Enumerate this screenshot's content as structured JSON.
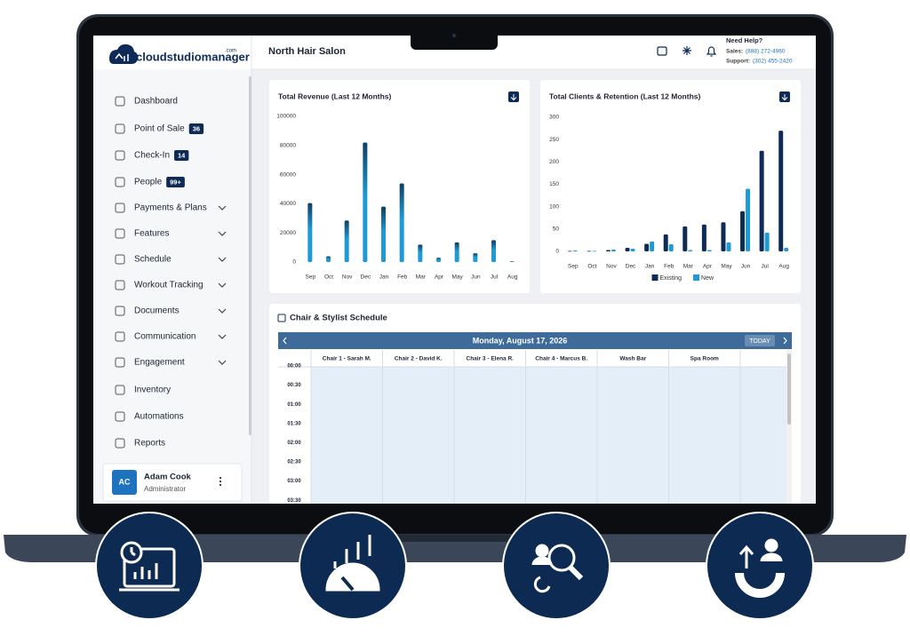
{
  "logo": {
    "name": "cloudstudiomanager",
    "suffix": ".com"
  },
  "header": {
    "title": "North Hair Salon",
    "help_title": "Need Help?",
    "sales_label": "Sales:",
    "sales_phone": "(888) 272-4960",
    "support_label": "Support:",
    "support_phone": "(302) 455-2420"
  },
  "sidebar": {
    "items": [
      {
        "label": "Dashboard"
      },
      {
        "label": "Point of Sale",
        "badge": "36"
      },
      {
        "label": "Check-In",
        "badge": "14"
      },
      {
        "label": "People",
        "badge": "99+"
      },
      {
        "label": "Payments & Plans",
        "expandable": true
      },
      {
        "label": "Features",
        "expandable": true
      },
      {
        "label": "Schedule",
        "expandable": true
      },
      {
        "label": "Workout Tracking",
        "expandable": true
      },
      {
        "label": "Documents",
        "expandable": true
      },
      {
        "label": "Communication",
        "expandable": true
      },
      {
        "label": "Engagement",
        "expandable": true
      },
      {
        "label": "Inventory"
      },
      {
        "label": "Automations"
      },
      {
        "label": "Reports"
      }
    ],
    "user": {
      "initials": "AC",
      "name": "Adam Cook",
      "role": "Administrator"
    }
  },
  "chart_data": [
    {
      "type": "bar",
      "title": "Total Revenue (Last 12 Months)",
      "categories": [
        "Sep",
        "Oct",
        "Nov",
        "Dec",
        "Jan",
        "Feb",
        "Mar",
        "Apr",
        "May",
        "Jun",
        "Jul",
        "Aug"
      ],
      "values": [
        40500,
        4000,
        28500,
        82000,
        38000,
        54000,
        12000,
        3000,
        13500,
        6000,
        15000,
        500
      ],
      "color": "#1e9ad6",
      "ylim": [
        0,
        100000
      ],
      "yticks": [
        0,
        20000,
        40000,
        60000,
        80000,
        100000
      ]
    },
    {
      "type": "bar",
      "title": "Total Clients & Retention (Last 12 Months)",
      "categories": [
        "Sep",
        "Oct",
        "Nov",
        "Dec",
        "Jan",
        "Feb",
        "Mar",
        "Apr",
        "May",
        "Jun",
        "Jul",
        "Aug"
      ],
      "series": [
        {
          "name": "Existing",
          "color": "#0d2b56",
          "values": [
            1,
            1,
            3,
            8,
            17,
            38,
            56,
            60,
            65,
            90,
            225,
            270
          ]
        },
        {
          "name": "New",
          "color": "#1e9ad6",
          "values": [
            2,
            1,
            4,
            6,
            22,
            16,
            3,
            3,
            20,
            140,
            42,
            8
          ]
        }
      ],
      "ylim": [
        0,
        300
      ],
      "yticks": [
        0,
        50,
        100,
        150,
        200,
        250,
        300
      ],
      "legend": "bottom"
    }
  ],
  "schedule": {
    "title": "Chair & Stylist Schedule",
    "date": "Monday, August 17, 2026",
    "today_button": "TODAY",
    "columns": [
      "Chair 1 - Sarah M.",
      "Chair 2 - David K.",
      "Chair 3 - Elena R.",
      "Chair 4 - Marcus B.",
      "Wash Bar",
      "Spa Room"
    ],
    "times": [
      "00:00",
      "00:30",
      "01:00",
      "01:30",
      "02:00",
      "02:30",
      "03:00",
      "03:30"
    ]
  }
}
